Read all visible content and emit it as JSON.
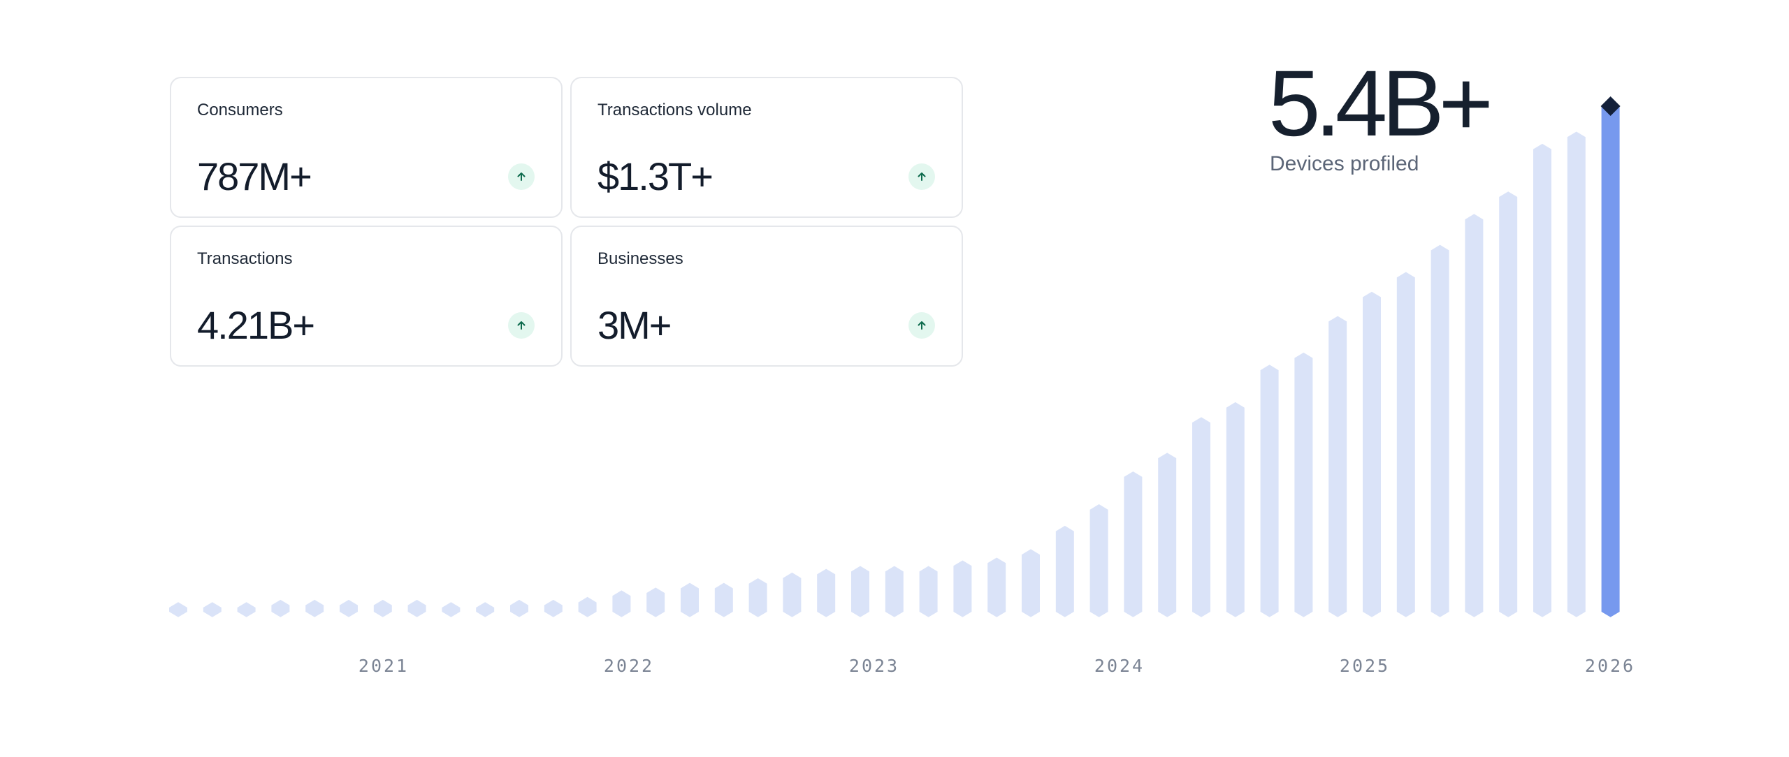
{
  "headline": {
    "value": "5.4B+",
    "label": "Devices profiled"
  },
  "stat_cards": [
    {
      "label": "Consumers",
      "value": "787M+",
      "icon": "arrow-up-icon"
    },
    {
      "label": "Transactions volume",
      "value": "$1.3T+",
      "icon": "arrow-up-icon"
    },
    {
      "label": "Transactions",
      "value": "4.21B+",
      "icon": "arrow-up-icon"
    },
    {
      "label": "Businesses",
      "value": "3M+",
      "icon": "arrow-up-icon"
    }
  ],
  "colors": {
    "bar": "#dae3f8",
    "bar_highlight": "#7799ee",
    "marker": "#13203a",
    "badge_bg": "#e3f7ef",
    "badge_arrow": "#0d6b4d",
    "tick_label": "#7b8494"
  },
  "chart_data": {
    "type": "bar",
    "title": "",
    "xlabel": "",
    "ylabel": "",
    "grid": false,
    "ylim": [
      0,
      5.4
    ],
    "x_ticks": [
      "2021",
      "2022",
      "2023",
      "2024",
      "2025",
      "2026"
    ],
    "values": [
      0.02,
      0.02,
      0.02,
      0.07,
      0.07,
      0.07,
      0.07,
      0.07,
      0.02,
      0.04,
      0.07,
      0.07,
      0.1,
      0.17,
      0.2,
      0.25,
      0.25,
      0.3,
      0.36,
      0.4,
      0.43,
      0.43,
      0.43,
      0.49,
      0.52,
      0.61,
      0.86,
      1.09,
      1.44,
      1.64,
      2.02,
      2.18,
      2.58,
      2.71,
      3.1,
      3.36,
      3.57,
      3.86,
      4.19,
      4.43,
      4.94,
      5.07,
      5.4
    ],
    "highlight_index": 42
  }
}
